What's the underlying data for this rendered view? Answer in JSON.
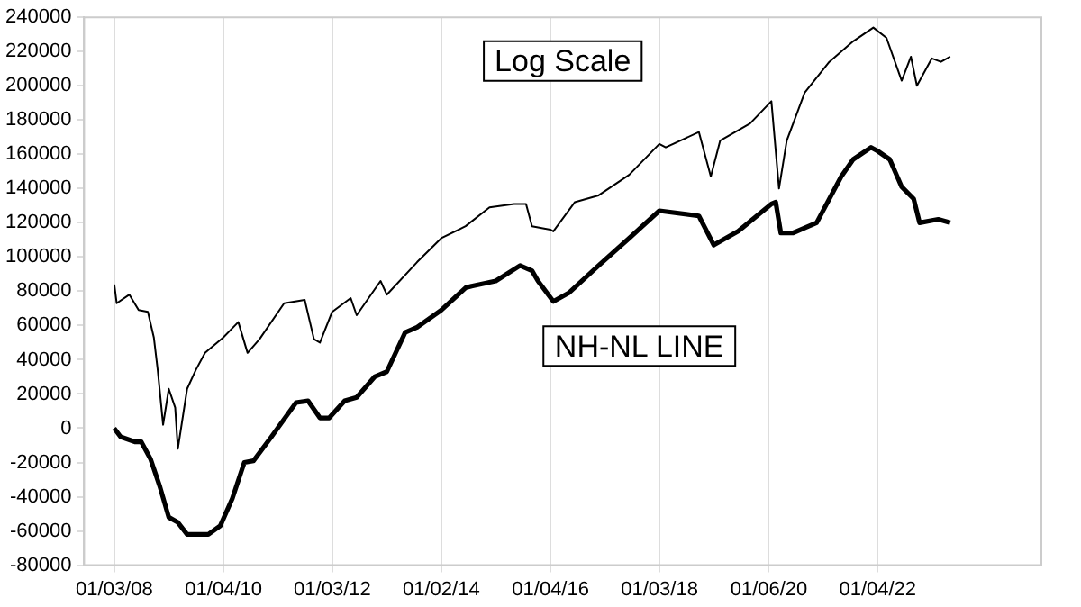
{
  "chart_data": {
    "type": "line",
    "xlim": [
      "2007-06-15",
      "2025-01-05"
    ],
    "xticks": [
      {
        "value": "2008-01-03",
        "label": "01/03/08"
      },
      {
        "value": "2010-01-04",
        "label": "01/04/10"
      },
      {
        "value": "2012-01-03",
        "label": "01/03/12"
      },
      {
        "value": "2014-01-02",
        "label": "01/02/14"
      },
      {
        "value": "2016-01-04",
        "label": "01/04/16"
      },
      {
        "value": "2018-01-03",
        "label": "01/03/18"
      },
      {
        "value": "2020-01-06",
        "label": "01/06/20"
      },
      {
        "value": "2022-01-04",
        "label": "01/04/22"
      }
    ],
    "ylim": [
      -80000,
      240000
    ],
    "yticks": [
      -80000,
      -60000,
      -40000,
      -20000,
      0,
      20000,
      40000,
      60000,
      80000,
      100000,
      120000,
      140000,
      160000,
      180000,
      200000,
      220000,
      240000
    ],
    "grid": "x",
    "legend": false,
    "marker": "none",
    "line_style": "solid",
    "series": [
      {
        "name": "Log Scale",
        "color": "#000000",
        "x": [
          "2008-01-03",
          "2008-01-19",
          "2008-04-13",
          "2008-06-14",
          "2008-08-15",
          "2008-09-24",
          "2008-10-20",
          "2008-11-25",
          "2009-01-02",
          "2009-02-14",
          "2009-03-04",
          "2009-05-05",
          "2009-07-02",
          "2009-09-02",
          "2010-01-02",
          "2010-04-13",
          "2010-06-14",
          "2010-09-02",
          "2011-02-14",
          "2011-07-02",
          "2011-09-02",
          "2011-10-12",
          "2012-01-02",
          "2012-05-05",
          "2012-06-14",
          "2012-11-21",
          "2013-01-02",
          "2013-07-24",
          "2014-01-02",
          "2014-06-14",
          "2014-11-21",
          "2015-05-05",
          "2015-07-24",
          "2015-09-02",
          "2016-01-02",
          "2016-01-23",
          "2016-06-14",
          "2016-11-21",
          "2017-06-14",
          "2018-01-02",
          "2018-02-14",
          "2018-09-24",
          "2018-12-13",
          "2019-02-14",
          "2019-09-02",
          "2020-01-23",
          "2020-03-14",
          "2020-05-05",
          "2020-09-02",
          "2021-02-14",
          "2021-07-24",
          "2021-12-06",
          "2022-03-04",
          "2022-06-14",
          "2022-08-15",
          "2022-09-24",
          "2023-01-02",
          "2023-03-04",
          "2023-05-05"
        ],
        "values": [
          84000,
          73000,
          78000,
          69000,
          68000,
          53000,
          34000,
          2000,
          23000,
          12000,
          -12000,
          23000,
          34000,
          44000,
          53000,
          62000,
          44000,
          52000,
          73000,
          75000,
          52000,
          50000,
          68000,
          76000,
          66000,
          86000,
          78000,
          97000,
          111000,
          118000,
          129000,
          131000,
          131000,
          118000,
          116000,
          115000,
          132000,
          136000,
          148000,
          166000,
          164000,
          173000,
          147000,
          168000,
          178000,
          191000,
          140000,
          168000,
          196000,
          214000,
          226000,
          234000,
          228000,
          203000,
          217000,
          200000,
          216000,
          214000,
          217000
        ]
      },
      {
        "name": "NH-NL LINE",
        "color": "#000000",
        "x": [
          "2008-01-02",
          "2008-02-14",
          "2008-05-23",
          "2008-07-02",
          "2008-09-02",
          "2008-11-03",
          "2009-01-02",
          "2009-03-04",
          "2009-05-05",
          "2009-09-24",
          "2009-12-13",
          "2010-03-04",
          "2010-05-23",
          "2010-07-24",
          "2010-11-21",
          "2011-05-05",
          "2011-07-24",
          "2011-10-12",
          "2011-12-13",
          "2012-03-26",
          "2012-06-14",
          "2012-10-12",
          "2013-01-02",
          "2013-05-05",
          "2013-07-24",
          "2014-01-02",
          "2014-06-14",
          "2014-07-24",
          "2015-01-02",
          "2015-06-14",
          "2015-09-02",
          "2015-10-12",
          "2016-01-23",
          "2016-05-05",
          "2016-11-21",
          "2017-06-14",
          "2018-01-02",
          "2018-09-24",
          "2019-01-02",
          "2019-06-14",
          "2020-01-23",
          "2020-02-21",
          "2020-03-26",
          "2020-06-14",
          "2020-11-21",
          "2021-05-05",
          "2021-07-24",
          "2021-11-21",
          "2022-01-02",
          "2022-03-26",
          "2022-06-14",
          "2022-09-02",
          "2022-10-12",
          "2023-02-14",
          "2023-05-05"
        ],
        "values": [
          0,
          -5000,
          -8000,
          -8000,
          -18000,
          -34000,
          -52000,
          -55000,
          -62000,
          -62000,
          -57000,
          -41000,
          -20000,
          -19000,
          -5000,
          15000,
          16000,
          6000,
          6000,
          16000,
          18000,
          30000,
          33000,
          56000,
          59000,
          69000,
          82000,
          83000,
          86000,
          95000,
          92000,
          86000,
          74000,
          79000,
          95000,
          111000,
          127000,
          124000,
          107000,
          115000,
          131000,
          132000,
          114000,
          114000,
          120000,
          147000,
          157000,
          164000,
          162000,
          157000,
          141000,
          134000,
          120000,
          122000,
          120000
        ]
      }
    ]
  }
}
